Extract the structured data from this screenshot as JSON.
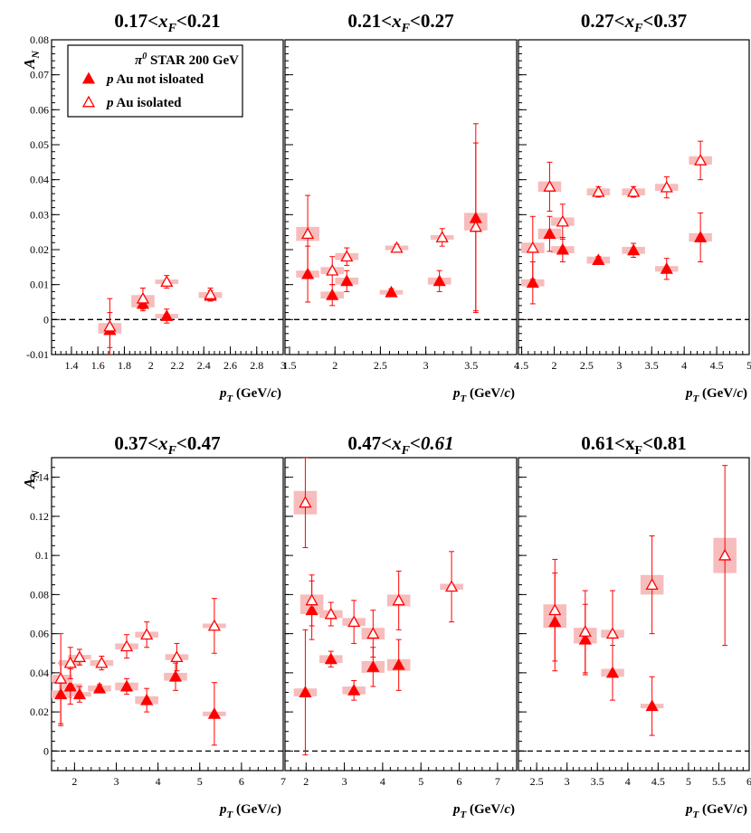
{
  "chart_data": {
    "type": "scatter",
    "experiment_label": "π0 STAR 200 GeV",
    "legend_position": "top-left",
    "series_names": [
      "p Au not isloated",
      "p Au isolated"
    ],
    "y_axis_label": "A_N",
    "x_axis_label": "p_T (GeV/c)",
    "top_row_ylim": [
      -0.01,
      0.08
    ],
    "top_row_yticks": [
      "-0.01",
      "0",
      "0.01",
      "0.02",
      "0.03",
      "0.04",
      "0.05",
      "0.06",
      "0.07",
      "0.08"
    ],
    "bottom_row_ylim": [
      -0.01,
      0.15
    ],
    "bottom_row_yticks": [
      "0",
      "0.02",
      "0.04",
      "0.06",
      "0.08",
      "0.1",
      "0.12",
      "0.14"
    ],
    "panels": [
      {
        "title": {
          "pre": "0.17<",
          "var": "x",
          "sub": "F",
          "post": "<0.21"
        },
        "xlim": [
          1.25,
          3.0
        ],
        "xticks": [
          "1.4",
          "1.6",
          "1.8",
          "2",
          "2.2",
          "2.4",
          "2.6",
          "2.8",
          "3"
        ],
        "not_isolated": [
          {
            "x": 1.69,
            "y": -0.003,
            "err": 0.005,
            "syst": 0.001
          },
          {
            "x": 1.94,
            "y": 0.0045,
            "err": 0.002,
            "syst": 0.001
          },
          {
            "x": 2.12,
            "y": 0.001,
            "err": 0.002,
            "syst": 0.0005
          },
          {
            "x": 2.45,
            "y": 0.0068,
            "err": 0.0015,
            "syst": 0.0005
          }
        ],
        "isolated": [
          {
            "x": 1.69,
            "y": -0.002,
            "err": 0.008,
            "syst": 0.001
          },
          {
            "x": 1.94,
            "y": 0.006,
            "err": 0.003,
            "syst": 0.001
          },
          {
            "x": 2.12,
            "y": 0.0108,
            "err": 0.0018,
            "syst": 0.0005
          },
          {
            "x": 2.45,
            "y": 0.0072,
            "err": 0.0018,
            "syst": 0.0005
          }
        ]
      },
      {
        "title": {
          "pre": "0.21<",
          "var": "x",
          "sub": "F",
          "post": "<0.27"
        },
        "xlim": [
          1.45,
          4.0
        ],
        "xticks": [
          "1.5",
          "2",
          "2.5",
          "3",
          "3.5",
          "4"
        ],
        "not_isolated": [
          {
            "x": 1.7,
            "y": 0.013,
            "err": 0.008,
            "syst": 0.001
          },
          {
            "x": 1.97,
            "y": 0.007,
            "err": 0.003,
            "syst": 0.001
          },
          {
            "x": 2.13,
            "y": 0.011,
            "err": 0.003,
            "syst": 0.001
          },
          {
            "x": 2.62,
            "y": 0.0078,
            "err": 0.001,
            "syst": 0.0005
          },
          {
            "x": 3.15,
            "y": 0.011,
            "err": 0.003,
            "syst": 0.001
          },
          {
            "x": 3.55,
            "y": 0.029,
            "err": 0.027,
            "syst": 0.0015
          }
        ],
        "isolated": [
          {
            "x": 1.7,
            "y": 0.0245,
            "err": 0.011,
            "syst": 0.002
          },
          {
            "x": 1.97,
            "y": 0.014,
            "err": 0.004,
            "syst": 0.001
          },
          {
            "x": 2.13,
            "y": 0.018,
            "err": 0.0025,
            "syst": 0.001
          },
          {
            "x": 2.68,
            "y": 0.0205,
            "err": 0.001,
            "syst": 0.0005
          },
          {
            "x": 3.18,
            "y": 0.0235,
            "err": 0.0025,
            "syst": 0.0005
          },
          {
            "x": 3.55,
            "y": 0.0265,
            "err": 0.024,
            "syst": 0.001
          }
        ]
      },
      {
        "title": {
          "pre": "0.27<",
          "var": "x",
          "sub": "F",
          "post": "<0.37"
        },
        "xlim": [
          1.45,
          5.0
        ],
        "xticks": [
          "1.5",
          "2",
          "2.5",
          "3",
          "3.5",
          "4",
          "4.5",
          "5"
        ],
        "not_isolated": [
          {
            "x": 1.67,
            "y": 0.0105,
            "err": 0.006,
            "syst": 0.001
          },
          {
            "x": 1.93,
            "y": 0.0245,
            "err": 0.005,
            "syst": 0.0015
          },
          {
            "x": 2.13,
            "y": 0.02,
            "err": 0.0035,
            "syst": 0.001
          },
          {
            "x": 2.68,
            "y": 0.017,
            "err": 0.001,
            "syst": 0.001
          },
          {
            "x": 3.22,
            "y": 0.0198,
            "err": 0.002,
            "syst": 0.001
          },
          {
            "x": 3.73,
            "y": 0.0145,
            "err": 0.003,
            "syst": 0.0008
          },
          {
            "x": 4.25,
            "y": 0.0235,
            "err": 0.007,
            "syst": 0.0012
          }
        ],
        "isolated": [
          {
            "x": 1.67,
            "y": 0.0205,
            "err": 0.009,
            "syst": 0.0015
          },
          {
            "x": 1.93,
            "y": 0.038,
            "err": 0.007,
            "syst": 0.0015
          },
          {
            "x": 2.13,
            "y": 0.028,
            "err": 0.005,
            "syst": 0.0012
          },
          {
            "x": 2.68,
            "y": 0.0365,
            "err": 0.0015,
            "syst": 0.001
          },
          {
            "x": 3.22,
            "y": 0.0365,
            "err": 0.0015,
            "syst": 0.001
          },
          {
            "x": 3.73,
            "y": 0.0378,
            "err": 0.003,
            "syst": 0.001
          },
          {
            "x": 4.25,
            "y": 0.0455,
            "err": 0.0055,
            "syst": 0.0012
          }
        ]
      },
      {
        "title": {
          "pre": "0.37<",
          "var": "x",
          "sub": "F",
          "post": "<0.47"
        },
        "xlim": [
          1.45,
          7.0
        ],
        "xticks": [
          "2",
          "3",
          "4",
          "5",
          "6",
          "7"
        ],
        "not_isolated": [
          {
            "x": 1.67,
            "y": 0.029,
            "err": 0.016,
            "syst": 0.002
          },
          {
            "x": 1.9,
            "y": 0.033,
            "err": 0.009,
            "syst": 0.0015
          },
          {
            "x": 2.12,
            "y": 0.029,
            "err": 0.004,
            "syst": 0.001
          },
          {
            "x": 2.6,
            "y": 0.032,
            "err": 0.002,
            "syst": 0.0015
          },
          {
            "x": 3.25,
            "y": 0.033,
            "err": 0.004,
            "syst": 0.002
          },
          {
            "x": 3.73,
            "y": 0.026,
            "err": 0.006,
            "syst": 0.002
          },
          {
            "x": 4.42,
            "y": 0.038,
            "err": 0.007,
            "syst": 0.002
          },
          {
            "x": 5.35,
            "y": 0.019,
            "err": 0.016,
            "syst": 0.001
          }
        ],
        "isolated": [
          {
            "x": 1.67,
            "y": 0.037,
            "err": 0.023,
            "syst": 0.002
          },
          {
            "x": 1.9,
            "y": 0.045,
            "err": 0.008,
            "syst": 0.0015
          },
          {
            "x": 2.12,
            "y": 0.048,
            "err": 0.004,
            "syst": 0.001
          },
          {
            "x": 2.65,
            "y": 0.045,
            "err": 0.0035,
            "syst": 0.0015
          },
          {
            "x": 3.25,
            "y": 0.0535,
            "err": 0.006,
            "syst": 0.0015
          },
          {
            "x": 3.73,
            "y": 0.0595,
            "err": 0.0065,
            "syst": 0.0015
          },
          {
            "x": 4.45,
            "y": 0.048,
            "err": 0.007,
            "syst": 0.0015
          },
          {
            "x": 5.35,
            "y": 0.064,
            "err": 0.014,
            "syst": 0.001
          }
        ]
      },
      {
        "title": {
          "pre": "0.47<",
          "var": "x",
          "sub": "F",
          "post": "<0.61",
          "post_italic": true
        },
        "xlim": [
          1.45,
          7.5
        ],
        "xticks": [
          "2",
          "3",
          "4",
          "5",
          "6",
          "7"
        ],
        "not_isolated": [
          {
            "x": 1.98,
            "y": 0.03,
            "err": 0.032,
            "syst": 0.002
          },
          {
            "x": 2.15,
            "y": 0.072,
            "err": 0.015,
            "syst": 0.002
          },
          {
            "x": 2.65,
            "y": 0.047,
            "err": 0.004,
            "syst": 0.002
          },
          {
            "x": 3.25,
            "y": 0.031,
            "err": 0.005,
            "syst": 0.002
          },
          {
            "x": 3.75,
            "y": 0.043,
            "err": 0.01,
            "syst": 0.003
          },
          {
            "x": 4.42,
            "y": 0.044,
            "err": 0.013,
            "syst": 0.003
          }
        ],
        "isolated": [
          {
            "x": 1.98,
            "y": 0.127,
            "err": 0.023,
            "syst": 0.006
          },
          {
            "x": 2.15,
            "y": 0.077,
            "err": 0.013,
            "syst": 0.003
          },
          {
            "x": 2.65,
            "y": 0.07,
            "err": 0.006,
            "syst": 0.002
          },
          {
            "x": 3.25,
            "y": 0.066,
            "err": 0.011,
            "syst": 0.002
          },
          {
            "x": 3.75,
            "y": 0.06,
            "err": 0.012,
            "syst": 0.003
          },
          {
            "x": 4.42,
            "y": 0.077,
            "err": 0.015,
            "syst": 0.003
          },
          {
            "x": 5.8,
            "y": 0.084,
            "err": 0.018,
            "syst": 0.0015
          }
        ]
      },
      {
        "title": {
          "pre": "0.61<x",
          "var": "",
          "sub": "F",
          "post": "<0.81",
          "upright_var": true
        },
        "xlim": [
          2.2,
          6.0
        ],
        "xticks": [
          "2.5",
          "3",
          "3.5",
          "4",
          "4.5",
          "5",
          "5.5",
          "6"
        ],
        "not_isolated": [
          {
            "x": 2.8,
            "y": 0.066,
            "err": 0.025,
            "syst": 0.003
          },
          {
            "x": 3.3,
            "y": 0.057,
            "err": 0.018,
            "syst": 0.002
          },
          {
            "x": 3.75,
            "y": 0.04,
            "err": 0.014,
            "syst": 0.002
          },
          {
            "x": 4.4,
            "y": 0.023,
            "err": 0.015,
            "syst": 0.001
          }
        ],
        "isolated": [
          {
            "x": 2.8,
            "y": 0.072,
            "err": 0.026,
            "syst": 0.003
          },
          {
            "x": 3.3,
            "y": 0.061,
            "err": 0.021,
            "syst": 0.002
          },
          {
            "x": 3.75,
            "y": 0.06,
            "err": 0.022,
            "syst": 0.002
          },
          {
            "x": 4.4,
            "y": 0.085,
            "err": 0.025,
            "syst": 0.005
          },
          {
            "x": 5.6,
            "y": 0.1,
            "err": 0.046,
            "syst": 0.009
          }
        ]
      }
    ]
  },
  "colors": {
    "marker": "#ff0000",
    "syst_box": "#f7bcbc",
    "axes": "#000000",
    "zero_line": "#000000"
  }
}
